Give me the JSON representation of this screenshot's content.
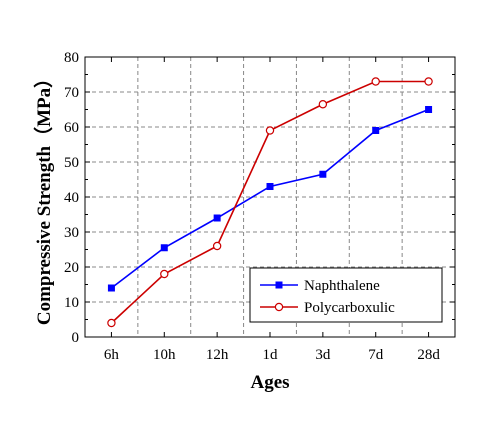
{
  "chart_data": {
    "type": "line",
    "title": "",
    "xlabel": "Ages",
    "ylabel": "Compressive Strength（MPa）",
    "categories": [
      "6h",
      "10h",
      "12h",
      "1d",
      "3d",
      "7d",
      "28d"
    ],
    "ylim": [
      0,
      80
    ],
    "yticks": [
      0,
      10,
      20,
      30,
      40,
      50,
      60,
      70,
      80
    ],
    "grid": true,
    "legend_position": "bottom-right",
    "series": [
      {
        "name": "Naphthalene",
        "color": "#0000ff",
        "marker": "filled-square",
        "values": [
          14,
          25.5,
          34,
          43,
          46.5,
          59,
          65
        ]
      },
      {
        "name": "Polycarboxulic",
        "color": "#cc0000",
        "marker": "open-circle",
        "values": [
          4,
          18,
          26,
          59,
          66.5,
          73,
          73
        ]
      }
    ]
  }
}
